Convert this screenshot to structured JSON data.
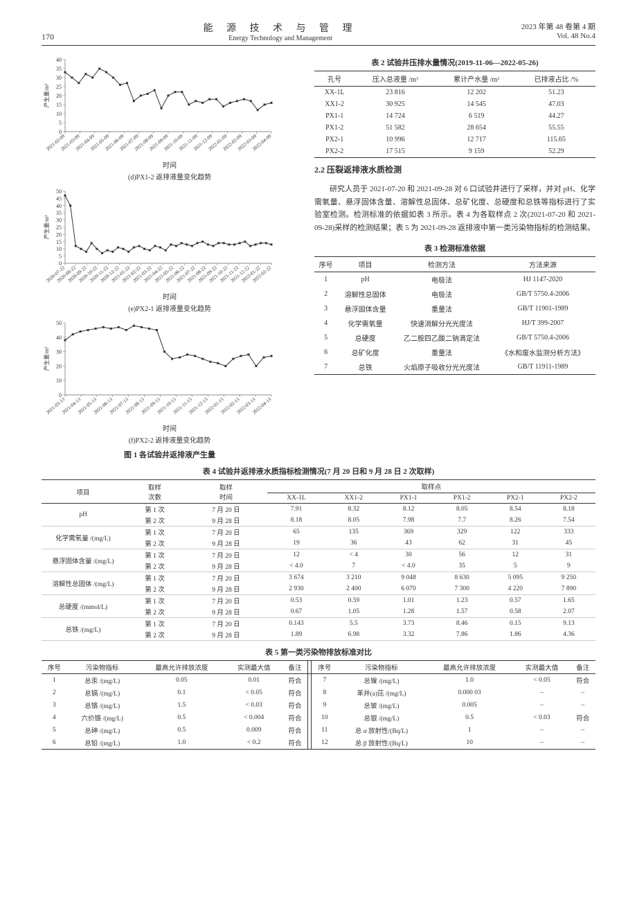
{
  "header": {
    "pagenum": "170",
    "journal_cn": "能 源 技 术 与 管 理",
    "journal_en": "Energy Technology and Management",
    "issue_line1": "2023 年第 48 卷第 4 期",
    "issue_line2": "Vol. 48  No.4"
  },
  "charts": {
    "axis_color": "#666",
    "line_color": "#333",
    "grid_color": "#e0e0e0",
    "label_fontsize": 8,
    "ylabel": "产生量/m³",
    "xlabel": "时间",
    "d": {
      "caption": "(d)PX1-2 返排液量变化趋势",
      "x_ticks": [
        "2021-02-09",
        "2021-03-09",
        "2021-04-09",
        "2021-05-09",
        "2021-06-09",
        "2021-07-09",
        "2021-08-09",
        "2021-09-09",
        "2021-10-09",
        "2021-11-09",
        "2021-12-09",
        "2022-01-09",
        "2022-02-09",
        "2022-03-09",
        "2022-04-09"
      ],
      "y_ticks": [
        0,
        5,
        10,
        15,
        20,
        25,
        30,
        35,
        40
      ],
      "ylim": [
        0,
        40
      ],
      "values": [
        33,
        30,
        27,
        32,
        30,
        35,
        33,
        30,
        26,
        27,
        17,
        20,
        21,
        23,
        13,
        20,
        22,
        22,
        15,
        17,
        16,
        18,
        18,
        14,
        16,
        17,
        18,
        17,
        12,
        15,
        16
      ]
    },
    "e": {
      "caption": "(e)PX2-1 返排液量变化趋势",
      "x_ticks": [
        "2020-07-22",
        "2020-08-22",
        "2020-09-22",
        "2020-10-22",
        "2020-11-22",
        "2020-12-22",
        "2021-01-22",
        "2021-02-22",
        "2021-03-22",
        "2021-04-22",
        "2021-05-22",
        "2021-06-22",
        "2021-07-22",
        "2021-08-22",
        "2021-09-22",
        "2021-10-22",
        "2021-11-22",
        "2021-12-22",
        "2022-01-22",
        "2022-02-22"
      ],
      "y_ticks": [
        0,
        5,
        10,
        15,
        20,
        25,
        30,
        35,
        40,
        45,
        50
      ],
      "ylim": [
        0,
        50
      ],
      "values": [
        47,
        40,
        12,
        10,
        8,
        14,
        10,
        7,
        9,
        8,
        11,
        10,
        8,
        11,
        12,
        10,
        9,
        12,
        11,
        9,
        13,
        12,
        14,
        13,
        12,
        14,
        15,
        13,
        12,
        14,
        14,
        13,
        13,
        14,
        15,
        12,
        13,
        14,
        14,
        13
      ]
    },
    "f": {
      "caption": "(f)PX2-2 返排液量变化趋势",
      "x_ticks": [
        "2021-03-13",
        "2021-04-13",
        "2021-05-13",
        "2021-06-13",
        "2021-07-13",
        "2021-08-13",
        "2021-09-13",
        "2021-10-13",
        "2021-11-13",
        "2021-12-13",
        "2022-01-13",
        "2022-02-13",
        "2022-03-13",
        "2022-04-13"
      ],
      "y_ticks": [
        0,
        10,
        20,
        30,
        40,
        50
      ],
      "ylim": [
        0,
        50
      ],
      "values": [
        38,
        42,
        44,
        45,
        46,
        47,
        46,
        47,
        45,
        48,
        47,
        46,
        45,
        30,
        25,
        26,
        28,
        27,
        25,
        23,
        22,
        20,
        25,
        27,
        28,
        20,
        26,
        27
      ]
    }
  },
  "fig1_caption": "图 1  各试验井返排液产生量",
  "table2": {
    "title": "表 2  试验井压排水量情况(2019-11-06—2022-05-26)",
    "columns": [
      "孔号",
      "压入总液量 /m³",
      "累计产水量 /m³",
      "已排液占比 /%"
    ],
    "rows": [
      [
        "XX-1L",
        "23 816",
        "12 202",
        "51.23"
      ],
      [
        "XX1-2",
        "30 925",
        "14 545",
        "47.03"
      ],
      [
        "PX1-1",
        "14 724",
        "6 519",
        "44.27"
      ],
      [
        "PX1-2",
        "51 582",
        "28 654",
        "55.55"
      ],
      [
        "PX2-1",
        "10 996",
        "12 717",
        "115.65"
      ],
      [
        "PX2-2",
        "17 515",
        "9 159",
        "52.29"
      ]
    ]
  },
  "sec22": {
    "title": "2.2  压裂返排液水质检测",
    "para": "研究人员于 2021-07-20 和 2021-09-28 对 6 口试验井进行了采样，并对 pH、化学需氧量、悬浮固体含量、溶解性总固体、总矿化度、总硬度和总铁等指标进行了实验室检测。检测标准的依据如表 3 所示。表 4 为各取样点 2 次(2021-07-20 和 2021-09-28)采样的检测结果；表 5 为 2021-09-28 返排液中第一类污染物指标的检测结果。"
  },
  "table3": {
    "title": "表 3  检测标准依据",
    "columns": [
      "序号",
      "项目",
      "检测方法",
      "方法来源"
    ],
    "rows": [
      [
        "1",
        "pH",
        "电极法",
        "HJ 1147-2020"
      ],
      [
        "2",
        "溶解性总固体",
        "电极法",
        "GB/T 5750.4-2006"
      ],
      [
        "3",
        "悬浮固体含量",
        "重量法",
        "GB/T 11901-1989"
      ],
      [
        "4",
        "化学需氧量",
        "快速消解分光光度法",
        "HJ/T 399-2007"
      ],
      [
        "5",
        "总硬度",
        "乙二胺四乙酸二钠滴定法",
        "GB/T 5750.4-2006"
      ],
      [
        "6",
        "总矿化度",
        "重量法",
        "《水和废水监测分析方法》"
      ],
      [
        "7",
        "总铁",
        "火焰原子吸收分光光度法",
        "GB/T 11911-1989"
      ]
    ]
  },
  "table4": {
    "title": "表 4  试验井返排液水质指标检测情况(7 月 20 日和 9 月 28 日 2 次取样)",
    "header1": [
      "项目",
      "取样",
      "取样",
      "取样点"
    ],
    "header2": [
      "次数",
      "时间",
      "XX-1L",
      "XX1-2",
      "PX1-1",
      "PX1-2",
      "PX2-1",
      "PX2-2"
    ],
    "groups": [
      {
        "name": "pH",
        "rows": [
          [
            "第 1 次",
            "7 月 20 日",
            "7.91",
            "8.32",
            "8.12",
            "8.05",
            "8.54",
            "8.18"
          ],
          [
            "第 2 次",
            "9 月 28 日",
            "8.18",
            "8.05",
            "7.98",
            "7.7",
            "8.26",
            "7.54"
          ]
        ]
      },
      {
        "name": "化学需氧量 /(mg/L)",
        "rows": [
          [
            "第 1 次",
            "7 月 20 日",
            "65",
            "135",
            "369",
            "329",
            "122",
            "333"
          ],
          [
            "第 2 次",
            "9 月 28 日",
            "19",
            "36",
            "43",
            "62",
            "31",
            "45"
          ]
        ]
      },
      {
        "name": "悬浮固体含量 /(mg/L)",
        "rows": [
          [
            "第 1 次",
            "7 月 20 日",
            "12",
            "< 4",
            "30",
            "56",
            "12",
            "31"
          ],
          [
            "第 2 次",
            "9 月 28 日",
            "< 4.0",
            "7",
            "< 4.0",
            "35",
            "5",
            "9"
          ]
        ]
      },
      {
        "name": "溶解性总固体 /(mg/L)",
        "rows": [
          [
            "第 1 次",
            "7 月 20 日",
            "3 674",
            "3 210",
            "9 048",
            "8 630",
            "5 095",
            "9 250"
          ],
          [
            "第 2 次",
            "9 月 28 日",
            "2 930",
            "2 400",
            "6 070",
            "7 300",
            "4 220",
            "7 890"
          ]
        ]
      },
      {
        "name": "总硬度 /(mmol/L)",
        "rows": [
          [
            "第 1 次",
            "7 月 20 日",
            "0.53",
            "0.59",
            "1.01",
            "1.23",
            "0.57",
            "1.65"
          ],
          [
            "第 2 次",
            "9 月 28 日",
            "0.67",
            "1.05",
            "1.28",
            "1.57",
            "0.58",
            "2.07"
          ]
        ]
      },
      {
        "name": "总铁 /(mg/L)",
        "rows": [
          [
            "第 1 次",
            "7 月 20 日",
            "0.143",
            "5.5",
            "3.73",
            "8.46",
            "0.15",
            "9.13"
          ],
          [
            "第 2 次",
            "9 月 28 日",
            "1.89",
            "6.98",
            "3.32",
            "7.86",
            "1.86",
            "4.36"
          ]
        ]
      }
    ]
  },
  "table5": {
    "title": "表 5  第一类污染物排放标准对比",
    "columns": [
      "序号",
      "污染物指标",
      "最高允许排放浓度",
      "实测最大值",
      "备注"
    ],
    "left": [
      [
        "1",
        "总汞 /(mg/L)",
        "0.05",
        "0.01",
        "符合"
      ],
      [
        "2",
        "总镉 /(mg/L)",
        "0.1",
        "< 0.05",
        "符合"
      ],
      [
        "3",
        "总铬 /(mg/L)",
        "1.5",
        "< 0.03",
        "符合"
      ],
      [
        "4",
        "六价铬 /(mg/L)",
        "0.5",
        "< 0.004",
        "符合"
      ],
      [
        "5",
        "总砷 /(mg/L)",
        "0.5",
        "0.009",
        "符合"
      ],
      [
        "6",
        "总铅 /(mg/L)",
        "1.0",
        "< 0.2",
        "符合"
      ]
    ],
    "right": [
      [
        "7",
        "总镍 /(mg/L)",
        "1.0",
        "< 0.05",
        "符合"
      ],
      [
        "8",
        "苯并(a)芘 /(mg/L)",
        "0.000 03",
        "–",
        "–"
      ],
      [
        "9",
        "总铍 /(mg/L)",
        "0.005",
        "–",
        "–"
      ],
      [
        "10",
        "总银 /(mg/L)",
        "0.5",
        "< 0.03",
        "符合"
      ],
      [
        "11",
        "总 α 放射性/(Bq/L)",
        "1",
        "–",
        "–"
      ],
      [
        "12",
        "总 β 放射性/(Bq/L)",
        "10",
        "–",
        "–"
      ]
    ]
  }
}
